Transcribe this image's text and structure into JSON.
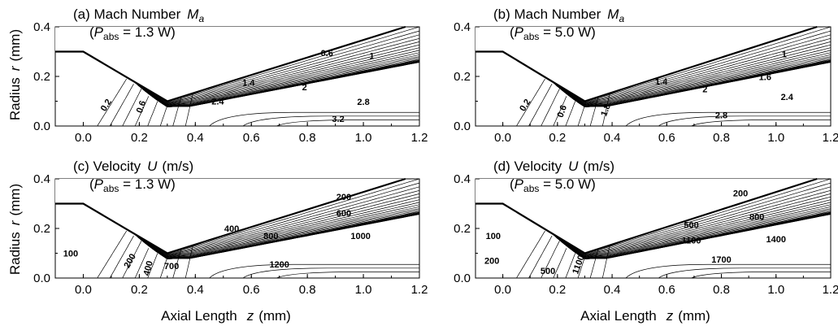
{
  "figure": {
    "ylabel_text": "Radius",
    "ylabel_var": "r",
    "ylabel_unit": "(mm)",
    "xlabel_text": "Axial Length",
    "xlabel_var": "z",
    "xlabel_unit": "(mm)"
  },
  "chart_data": [
    {
      "type": "contour",
      "panel": "a",
      "title_line1": "(a) Mach Number",
      "title_var": "M",
      "title_sub": "a",
      "power_prefix": "(",
      "power_var": "P",
      "power_sub": "abs",
      "power_value": " = 1.3 W)",
      "xlim": [
        -0.1,
        1.2
      ],
      "ylim": [
        0.0,
        0.4
      ],
      "xticks": [
        "0.0",
        "0.2",
        "0.4",
        "0.6",
        "0.8",
        "1.0",
        "1.2"
      ],
      "yticks": [
        "0.0",
        "0.2",
        "0.4"
      ],
      "wall": [
        [
          -0.1,
          0.3
        ],
        [
          0.0,
          0.3
        ],
        [
          0.3,
          0.1
        ],
        [
          1.15,
          0.4
        ]
      ],
      "contour_labels": [
        {
          "text": "0.2",
          "x": 0.08,
          "y": 0.085,
          "rot": -58
        },
        {
          "text": "0.6",
          "x": 0.205,
          "y": 0.078,
          "rot": -70
        },
        {
          "text": "0.6",
          "x": 0.87,
          "y": 0.295,
          "rot": 0
        },
        {
          "text": "1",
          "x": 1.03,
          "y": 0.283,
          "rot": 0
        },
        {
          "text": "1.4",
          "x": 0.59,
          "y": 0.175,
          "rot": 0
        },
        {
          "text": "2",
          "x": 0.79,
          "y": 0.158,
          "rot": 0
        },
        {
          "text": "2.4",
          "x": 0.48,
          "y": 0.1,
          "rot": 0
        },
        {
          "text": "2.8",
          "x": 1.0,
          "y": 0.098,
          "rot": 0
        },
        {
          "text": "3.2",
          "x": 0.91,
          "y": 0.03,
          "rot": 0
        }
      ]
    },
    {
      "type": "contour",
      "panel": "b",
      "title_line1": "(b) Mach Number",
      "title_var": "M",
      "title_sub": "a",
      "power_prefix": "(",
      "power_var": "P",
      "power_sub": "abs",
      "power_value": " = 5.0 W)",
      "xlim": [
        -0.1,
        1.2
      ],
      "ylim": [
        0.0,
        0.4
      ],
      "xticks": [
        "0.0",
        "0.2",
        "0.4",
        "0.6",
        "0.8",
        "1.0",
        "1.2"
      ],
      "yticks": [
        "0.0",
        "0.2",
        "0.4"
      ],
      "wall": [
        [
          -0.1,
          0.3
        ],
        [
          0.0,
          0.3
        ],
        [
          0.3,
          0.1
        ],
        [
          1.15,
          0.4
        ]
      ],
      "contour_labels": [
        {
          "text": "0.2",
          "x": 0.08,
          "y": 0.085,
          "rot": -58
        },
        {
          "text": "0.6",
          "x": 0.215,
          "y": 0.06,
          "rot": -70
        },
        {
          "text": "1",
          "x": 1.03,
          "y": 0.29,
          "rot": 0
        },
        {
          "text": "1.4",
          "x": 0.58,
          "y": 0.18,
          "rot": 0
        },
        {
          "text": "1.6",
          "x": 0.96,
          "y": 0.198,
          "rot": 0
        },
        {
          "text": "2",
          "x": 0.74,
          "y": 0.15,
          "rot": 0
        },
        {
          "text": "2.4",
          "x": 1.04,
          "y": 0.118,
          "rot": 0
        },
        {
          "text": "1.8",
          "x": 0.375,
          "y": 0.065,
          "rot": -70
        },
        {
          "text": "2.8",
          "x": 0.8,
          "y": 0.045,
          "rot": 0
        }
      ]
    },
    {
      "type": "contour",
      "panel": "c",
      "title_line1": "(c) Velocity",
      "title_var": "U",
      "title_sub": "",
      "title_unit": "(m/s)",
      "power_prefix": "(",
      "power_var": "P",
      "power_sub": "abs",
      "power_value": " = 1.3 W)",
      "xlim": [
        -0.1,
        1.2
      ],
      "ylim": [
        0.0,
        0.4
      ],
      "xticks": [
        "0.0",
        "0.2",
        "0.4",
        "0.6",
        "0.8",
        "1.0",
        "1.2"
      ],
      "yticks": [
        "0.0",
        "0.2",
        "0.4"
      ],
      "wall": [
        [
          -0.1,
          0.3
        ],
        [
          0.0,
          0.3
        ],
        [
          0.3,
          0.1
        ],
        [
          1.15,
          0.4
        ]
      ],
      "contour_labels": [
        {
          "text": "100",
          "x": -0.045,
          "y": 0.1,
          "rot": 0
        },
        {
          "text": "200",
          "x": 0.165,
          "y": 0.07,
          "rot": -60
        },
        {
          "text": "400",
          "x": 0.23,
          "y": 0.04,
          "rot": -75
        },
        {
          "text": "700",
          "x": 0.315,
          "y": 0.05,
          "rot": 0
        },
        {
          "text": "200",
          "x": 0.93,
          "y": 0.328,
          "rot": 0
        },
        {
          "text": "400",
          "x": 0.53,
          "y": 0.2,
          "rot": 0
        },
        {
          "text": "600",
          "x": 0.93,
          "y": 0.263,
          "rot": 0
        },
        {
          "text": "800",
          "x": 0.67,
          "y": 0.17,
          "rot": 0
        },
        {
          "text": "1000",
          "x": 0.99,
          "y": 0.17,
          "rot": 0
        },
        {
          "text": "1200",
          "x": 0.7,
          "y": 0.055,
          "rot": 0
        }
      ]
    },
    {
      "type": "contour",
      "panel": "d",
      "title_line1": "(d) Velocity",
      "title_var": "U",
      "title_sub": "",
      "title_unit": "(m/s)",
      "power_prefix": "(",
      "power_var": "P",
      "power_sub": "abs",
      "power_value": " = 5.0 W)",
      "xlim": [
        -0.1,
        1.2
      ],
      "ylim": [
        0.0,
        0.4
      ],
      "xticks": [
        "0.0",
        "0.2",
        "0.4",
        "0.6",
        "0.8",
        "1.0",
        "1.2"
      ],
      "yticks": [
        "0.0",
        "0.2",
        "0.4"
      ],
      "wall": [
        [
          -0.1,
          0.3
        ],
        [
          0.0,
          0.3
        ],
        [
          0.3,
          0.1
        ],
        [
          1.15,
          0.4
        ]
      ],
      "contour_labels": [
        {
          "text": "100",
          "x": -0.035,
          "y": 0.17,
          "rot": 0
        },
        {
          "text": "200",
          "x": -0.04,
          "y": 0.07,
          "rot": 0
        },
        {
          "text": "500",
          "x": 0.165,
          "y": 0.03,
          "rot": 0
        },
        {
          "text": "1100",
          "x": 0.275,
          "y": 0.055,
          "rot": -70
        },
        {
          "text": "200",
          "x": 0.87,
          "y": 0.343,
          "rot": 0
        },
        {
          "text": "500",
          "x": 0.69,
          "y": 0.215,
          "rot": 0
        },
        {
          "text": "800",
          "x": 0.93,
          "y": 0.248,
          "rot": 0
        },
        {
          "text": "1100",
          "x": 0.69,
          "y": 0.152,
          "rot": 0
        },
        {
          "text": "1400",
          "x": 1.0,
          "y": 0.158,
          "rot": 0
        },
        {
          "text": "1700",
          "x": 0.8,
          "y": 0.075,
          "rot": 0
        }
      ]
    }
  ]
}
